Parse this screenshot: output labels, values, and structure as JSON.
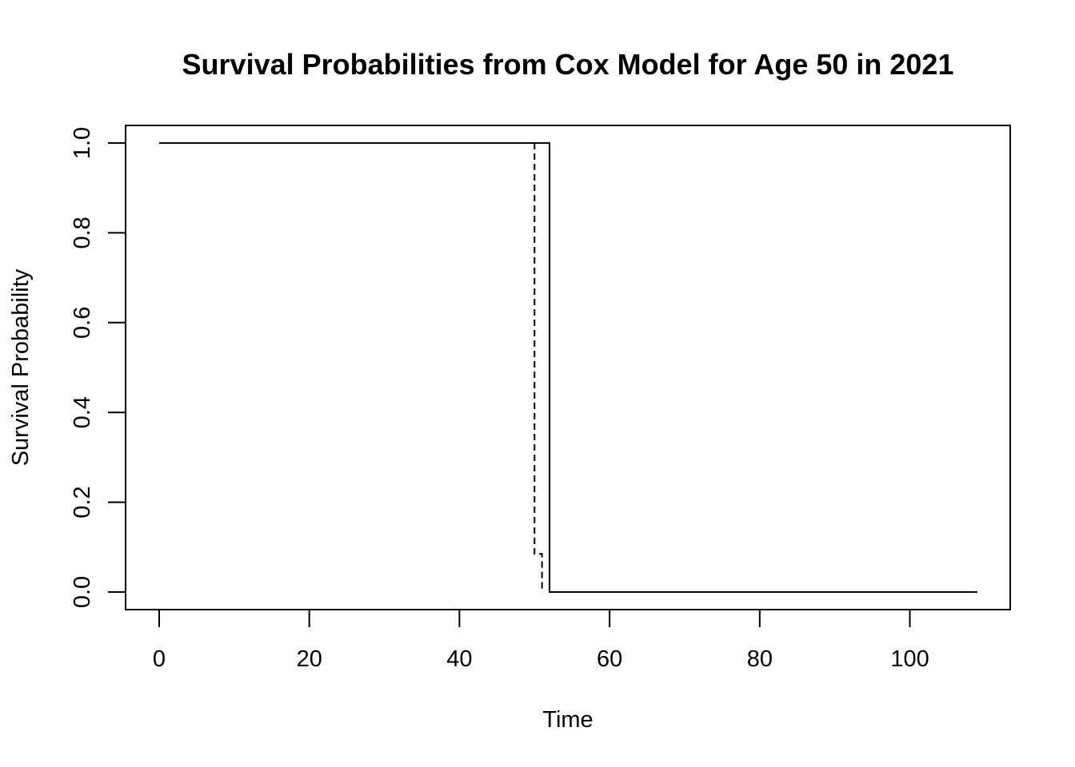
{
  "chart_data": {
    "type": "line",
    "title": "Survival Probabilities from Cox Model for Age 50 in 2021",
    "xlabel": "Time",
    "ylabel": "Survival Probability",
    "xlim": [
      0,
      109
    ],
    "ylim": [
      0,
      1
    ],
    "x_ticks": [
      0,
      20,
      40,
      60,
      80,
      100
    ],
    "y_ticks": [
      0.0,
      0.2,
      0.4,
      0.6,
      0.8,
      1.0
    ],
    "x_tick_labels": [
      "0",
      "20",
      "40",
      "60",
      "80",
      "100"
    ],
    "y_tick_labels": [
      "0.0",
      "0.2",
      "0.4",
      "0.6",
      "0.8",
      "1.0"
    ],
    "grid": false,
    "legend": "none",
    "series": [
      {
        "style": "solid",
        "step": true,
        "points": [
          [
            0,
            1.0
          ],
          [
            52,
            1.0
          ],
          [
            52,
            0.0
          ],
          [
            109,
            0.0
          ]
        ]
      },
      {
        "style": "dashed",
        "step": true,
        "points": [
          [
            50,
            1.0
          ],
          [
            50,
            0.085
          ],
          [
            51,
            0.085
          ],
          [
            51,
            0.0
          ]
        ]
      }
    ]
  }
}
